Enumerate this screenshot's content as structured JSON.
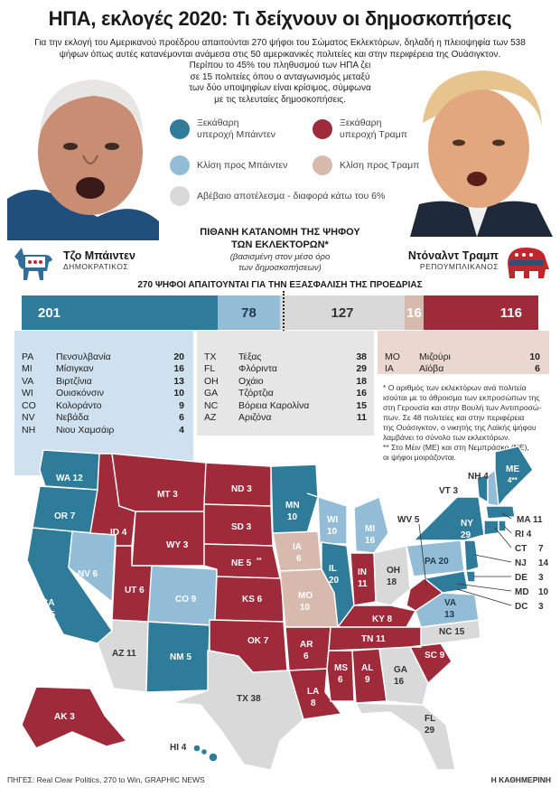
{
  "title": "ΗΠΑ, εκλογές 2020: Τι δείχνουν οι δημοσκοπήσεις",
  "intro": [
    "Για την εκλογή του Αμερικανού προέδρου απαιτούνται 270 ψήφοι του Σώματος Εκλεκτόρων, δηλαδή η πλειοψηφία των 538",
    "ψήφων όπως αυτές κατανέμονται ανάμεσα στις 50 αμερικανικές πολιτείες και στην περιφέρεια της Ουάσιγκτον.",
    "Περίπου το 45% του πληθυσμού των ΗΠΑ ζει",
    "σε 15 πολιτείες όπου ο ανταγωνισμός μεταξύ",
    "των δύο υποψηφίων είναι κρίσιμος, σύμφωνα",
    "με τις τελευταίες δημοσκοπήσεις."
  ],
  "legend": {
    "safe_d": "Ξεκάθαρη\nυπεροχή Μπάιντεν",
    "safe_r": "Ξεκάθαρη\nυπεροχή Τραμπ",
    "lean_d": "Κλίση προς Μπάιντεν",
    "lean_r": "Κλίση προς Τραμπ",
    "tossup": "Αβέβαιο αποτέλεσμα - διαφορά κάτω του 6%"
  },
  "colors": {
    "safe_d": "#2f7b9a",
    "lean_d": "#93bcd6",
    "tossup": "#d9d9d9",
    "lean_r": "#d7b9ae",
    "safe_r": "#9e2a3a"
  },
  "kataNomi": {
    "title1": "ΠΙΘΑΝΗ ΚΑΤΑΝΟΜΗ ΤΗΣ ΨΗΦΟΥ",
    "title2": "ΤΩΝ ΕΚΛΕΚΤΟΡΩΝ*",
    "sub1": "(βασισμένη στον μέσο όρο",
    "sub2": "των δημοσκοπήσεων)"
  },
  "biden": {
    "name": "Τζο Μπάιντεν",
    "party": "ΔΗΜΟΚΡΑΤΙΚΟΣ"
  },
  "trump": {
    "name": "Ντόναλντ Τραμπ",
    "party": "ΡΕΠΟΥΜΠΛΙΚΑΝΟΣ"
  },
  "threshold": "270 ΨΗΦΟΙ ΑΠΑΙΤΟΥΝΤΑΙ ΓΙΑ ΤΗΝ ΕΞΑΣΦΑΛΙΣΗ ΤΗΣ ΠΡΟΕΔΡΙΑΣ",
  "bar": {
    "safe_d": "201",
    "lean_d": "78",
    "tossup": "127",
    "lean_r": "16",
    "safe_r": "116"
  },
  "lean_d_states": [
    {
      "ab": "PA",
      "name": "Πενσυλβανία",
      "v": "20"
    },
    {
      "ab": "MI",
      "name": "Μίσιγκαν",
      "v": "16"
    },
    {
      "ab": "VA",
      "name": "Βιρτζίνια",
      "v": "13"
    },
    {
      "ab": "WI",
      "name": "Ουισκόνσιν",
      "v": "10"
    },
    {
      "ab": "CO",
      "name": "Κολοράντο",
      "v": "9"
    },
    {
      "ab": "NV",
      "name": "Νεβάδα",
      "v": "6"
    },
    {
      "ab": "NH",
      "name": "Νιου Χαμσάιρ",
      "v": "4"
    }
  ],
  "tossup_states": [
    {
      "ab": "TX",
      "name": "Τέξας",
      "v": "38"
    },
    {
      "ab": "FL",
      "name": "Φλόριντα",
      "v": "29"
    },
    {
      "ab": "OH",
      "name": "Οχάιο",
      "v": "18"
    },
    {
      "ab": "GA",
      "name": "Τζόρτζια",
      "v": "16"
    },
    {
      "ab": "NC",
      "name": "Βόρεια Καρολίνα",
      "v": "15"
    },
    {
      "ab": "AZ",
      "name": "Αριζόνα",
      "v": "11"
    }
  ],
  "lean_r_states": [
    {
      "ab": "MO",
      "name": "Μιζούρι",
      "v": "10"
    },
    {
      "ab": "IA",
      "name": "Αϊόβα",
      "v": "6"
    }
  ],
  "notes": [
    "* Ο αριθμός των εκλεκτόρων ανά πολιτεία",
    "ισούται με το άθροισμα των εκπροσώπων της",
    "στη Γερουσία και στην Βουλή των Αντιπροσώ-",
    "πων. Σε 48 πολιτείες και στην περιφέρεια",
    "της Ουάσιγκτον, ο νικητής της Λαϊκής ψήφου",
    "λαμβάνει το σύνολο των εκλεκτόρων.",
    "** Στο Μέιν (ΜΕ) και στη Νεμπράσκο (ΝΕ),",
    "οι ψήφοι μοιράζονται."
  ],
  "map_labels": [
    {
      "t": "WA 12"
    },
    {
      "t": "OR 7"
    },
    {
      "t": "CA"
    },
    {
      "t": "55"
    },
    {
      "t": "NV 6"
    },
    {
      "t": "ID 4"
    },
    {
      "t": "MT 3"
    },
    {
      "t": "WY 3"
    },
    {
      "t": "UT 6"
    },
    {
      "t": "AZ 11"
    },
    {
      "t": "CO 9"
    },
    {
      "t": "NM 5"
    },
    {
      "t": "ND 3"
    },
    {
      "t": "SD 3"
    },
    {
      "t": "NE 5"
    },
    {
      "t": "**"
    },
    {
      "t": "KS 6"
    },
    {
      "t": "OK 7"
    },
    {
      "t": "TX 38"
    },
    {
      "t": "MN"
    },
    {
      "t": "10"
    },
    {
      "t": "IA"
    },
    {
      "t": "6"
    },
    {
      "t": "MO"
    },
    {
      "t": "10"
    },
    {
      "t": "AR"
    },
    {
      "t": "6"
    },
    {
      "t": "LA"
    },
    {
      "t": "8"
    },
    {
      "t": "WI"
    },
    {
      "t": "10"
    },
    {
      "t": "IL"
    },
    {
      "t": "20"
    },
    {
      "t": "MI"
    },
    {
      "t": "16"
    },
    {
      "t": "IN"
    },
    {
      "t": "11"
    },
    {
      "t": "OH"
    },
    {
      "t": "18"
    },
    {
      "t": "KY 8"
    },
    {
      "t": "TN 11"
    },
    {
      "t": "MS"
    },
    {
      "t": "6"
    },
    {
      "t": "AL"
    },
    {
      "t": "9"
    },
    {
      "t": "GA"
    },
    {
      "t": "16"
    },
    {
      "t": "FL"
    },
    {
      "t": "29"
    },
    {
      "t": "SC 9"
    },
    {
      "t": "NC 15"
    },
    {
      "t": "VA"
    },
    {
      "t": "13"
    },
    {
      "t": "WV 5"
    },
    {
      "t": "PA 20"
    },
    {
      "t": "NY"
    },
    {
      "t": "29"
    },
    {
      "t": "VT 3"
    },
    {
      "t": "NH 4"
    },
    {
      "t": "ME"
    },
    {
      "t": "4**"
    },
    {
      "t": "MA 11"
    },
    {
      "t": "RI 4"
    },
    {
      "t": "CT"
    },
    {
      "t": "7"
    },
    {
      "t": "NJ"
    },
    {
      "t": "14"
    },
    {
      "t": "DE"
    },
    {
      "t": "3"
    },
    {
      "t": "MD"
    },
    {
      "t": "10"
    },
    {
      "t": "DC"
    },
    {
      "t": "3"
    },
    {
      "t": "AK 3"
    },
    {
      "t": "HI 4"
    }
  ],
  "footer": "ΠΗΓΕΣ: Real Clear Politics, 270 to Win, GRAPHIC NEWS",
  "credit": "Η ΚΑΘΗΜΕΡΙΝΗ"
}
